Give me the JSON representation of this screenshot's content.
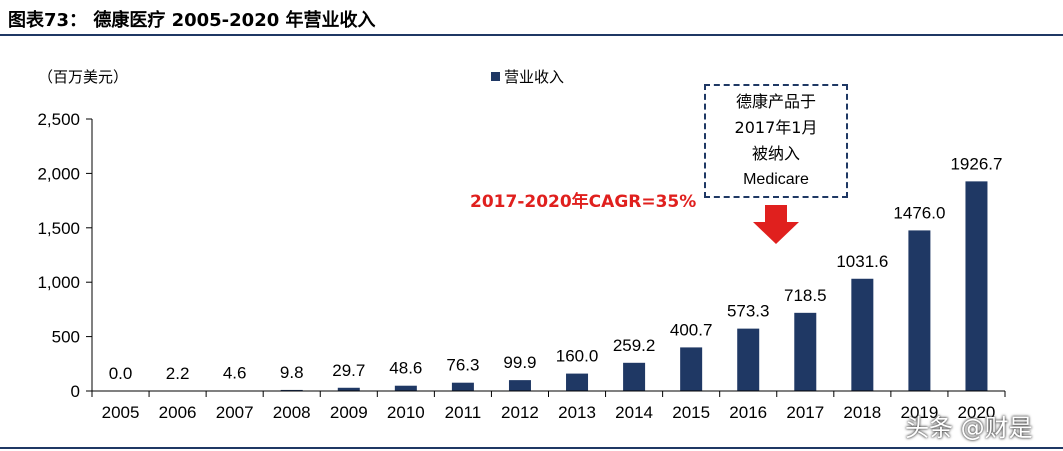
{
  "caption": "图表73： 德康医疗 2005-2020 年营业收入",
  "unit_label": "（百万美元）",
  "legend_label": "营业收入",
  "callout": {
    "line1": "德康产品于",
    "line2": "2017年1月",
    "line3": "被纳入",
    "line4": "Medicare"
  },
  "cagr_text": "2017-2020年CAGR=35%",
  "watermark": "头条 @财是",
  "colors": {
    "bar": "#1f3864",
    "accent": "#e0201e"
  },
  "chart_data": {
    "type": "bar",
    "title": "",
    "xlabel": "",
    "ylabel": "（百万美元）",
    "ylim": [
      0,
      2500
    ],
    "yticks": [
      0,
      500,
      1000,
      1500,
      2000,
      2500
    ],
    "ytick_labels": [
      "0",
      "500",
      "1,000",
      "1,500",
      "2,000",
      "2,500"
    ],
    "categories": [
      "2005",
      "2006",
      "2007",
      "2008",
      "2009",
      "2010",
      "2011",
      "2012",
      "2013",
      "2014",
      "2015",
      "2016",
      "2017",
      "2018",
      "2019",
      "2020"
    ],
    "series": [
      {
        "name": "营业收入",
        "values": [
          0.0,
          2.2,
          4.6,
          9.8,
          29.7,
          48.6,
          76.3,
          99.9,
          160.0,
          259.2,
          400.7,
          573.3,
          718.5,
          1031.6,
          1476.0,
          1926.7
        ],
        "labels": [
          "0.0",
          "2.2",
          "4.6",
          "9.8",
          "29.7",
          "48.6",
          "76.3",
          "99.9",
          "160.0",
          "259.2",
          "400.7",
          "573.3",
          "718.5",
          "1031.6",
          "1476.0",
          "1926.7"
        ]
      }
    ],
    "legend": "top-center",
    "grid": false
  }
}
